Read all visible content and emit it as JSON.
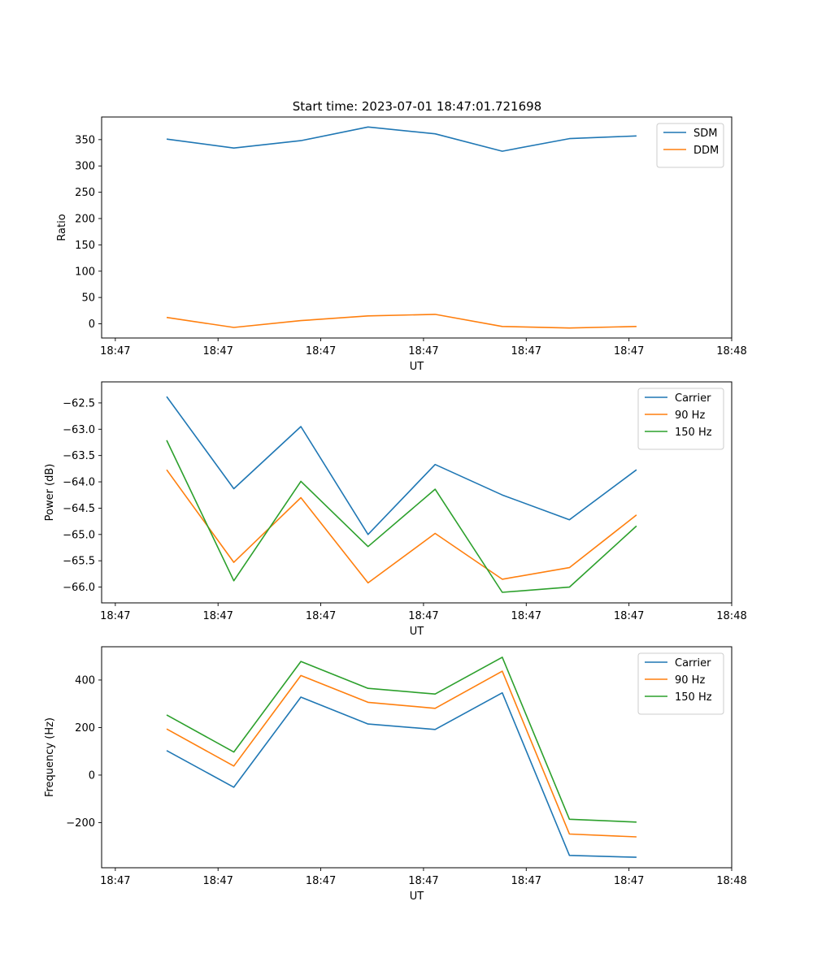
{
  "title": "Start time: 2023-07-01 18:47:01.721698",
  "colors": {
    "blue": "#1f77b4",
    "orange": "#ff7f0e",
    "green": "#2ca02c"
  },
  "chart_data": [
    {
      "type": "line",
      "title": "Start time: 2023-07-01 18:47:01.721698",
      "xlabel": "UT",
      "ylabel": "Ratio",
      "xlim": [
        -0.2,
        9.0
      ],
      "ylim": [
        -27,
        393
      ],
      "xticks": [
        0,
        1.5,
        3,
        4.5,
        6,
        7.5,
        9
      ],
      "xticklabels": [
        "18:47",
        "18:47",
        "18:47",
        "18:47",
        "18:47",
        "18:47",
        "18:48"
      ],
      "yticks": [
        0,
        50,
        100,
        150,
        200,
        250,
        300,
        350
      ],
      "yticklabels": [
        "0",
        "50",
        "100",
        "150",
        "200",
        "250",
        "300",
        "350"
      ],
      "legend_position": "top-right",
      "grid": false,
      "x": [
        0.75,
        1.73,
        2.71,
        3.69,
        4.67,
        5.65,
        6.63,
        7.61
      ],
      "series": [
        {
          "name": "SDM",
          "color": "#1f77b4",
          "values": [
            351,
            334,
            348,
            374,
            361,
            328,
            352,
            357
          ]
        },
        {
          "name": "DDM",
          "color": "#ff7f0e",
          "values": [
            12,
            -7,
            6,
            15,
            18,
            -5,
            -8,
            -5
          ]
        }
      ]
    },
    {
      "type": "line",
      "xlabel": "UT",
      "ylabel": "Power (dB)",
      "xlim": [
        -0.2,
        9.0
      ],
      "ylim": [
        -66.3,
        -62.1
      ],
      "xticks": [
        0,
        1.5,
        3,
        4.5,
        6,
        7.5,
        9
      ],
      "xticklabels": [
        "18:47",
        "18:47",
        "18:47",
        "18:47",
        "18:47",
        "18:47",
        "18:48"
      ],
      "yticks": [
        -66.0,
        -65.5,
        -65.0,
        -64.5,
        -64.0,
        -63.5,
        -63.0,
        -62.5
      ],
      "yticklabels": [
        "−66.0",
        "−65.5",
        "−65.0",
        "−64.5",
        "−64.0",
        "−63.5",
        "−63.0",
        "−62.5"
      ],
      "legend_position": "top-right",
      "grid": false,
      "x": [
        0.75,
        1.73,
        2.71,
        3.69,
        4.67,
        5.65,
        6.63,
        7.61
      ],
      "series": [
        {
          "name": "Carrier",
          "color": "#1f77b4",
          "values": [
            -62.38,
            -64.13,
            -62.95,
            -65.0,
            -63.67,
            -64.25,
            -64.72,
            -63.77
          ]
        },
        {
          "name": "90 Hz",
          "color": "#ff7f0e",
          "values": [
            -63.77,
            -65.53,
            -64.3,
            -65.92,
            -64.98,
            -65.85,
            -65.63,
            -64.63
          ]
        },
        {
          "name": "150 Hz",
          "color": "#2ca02c",
          "values": [
            -63.21,
            -65.88,
            -63.99,
            -65.23,
            -64.14,
            -66.1,
            -66.0,
            -64.84
          ]
        }
      ]
    },
    {
      "type": "line",
      "xlabel": "UT",
      "ylabel": "Frequency (Hz)",
      "xlim": [
        -0.2,
        9.0
      ],
      "ylim": [
        -390,
        540
      ],
      "xticks": [
        0,
        1.5,
        3,
        4.5,
        6,
        7.5,
        9
      ],
      "xticklabels": [
        "18:47",
        "18:47",
        "18:47",
        "18:47",
        "18:47",
        "18:47",
        "18:48"
      ],
      "yticks": [
        -200,
        0,
        200,
        400
      ],
      "yticklabels": [
        "−200",
        "0",
        "200",
        "400"
      ],
      "legend_position": "top-right",
      "grid": false,
      "x": [
        0.75,
        1.73,
        2.71,
        3.69,
        4.67,
        5.65,
        6.63,
        7.61
      ],
      "series": [
        {
          "name": "Carrier",
          "color": "#1f77b4",
          "values": [
            103,
            -51,
            328,
            215,
            192,
            346,
            -338,
            -346
          ]
        },
        {
          "name": "90 Hz",
          "color": "#ff7f0e",
          "values": [
            194,
            38,
            419,
            306,
            281,
            437,
            -248,
            -260
          ]
        },
        {
          "name": "150 Hz",
          "color": "#2ca02c",
          "values": [
            253,
            97,
            478,
            365,
            341,
            496,
            -186,
            -198
          ]
        }
      ]
    }
  ]
}
